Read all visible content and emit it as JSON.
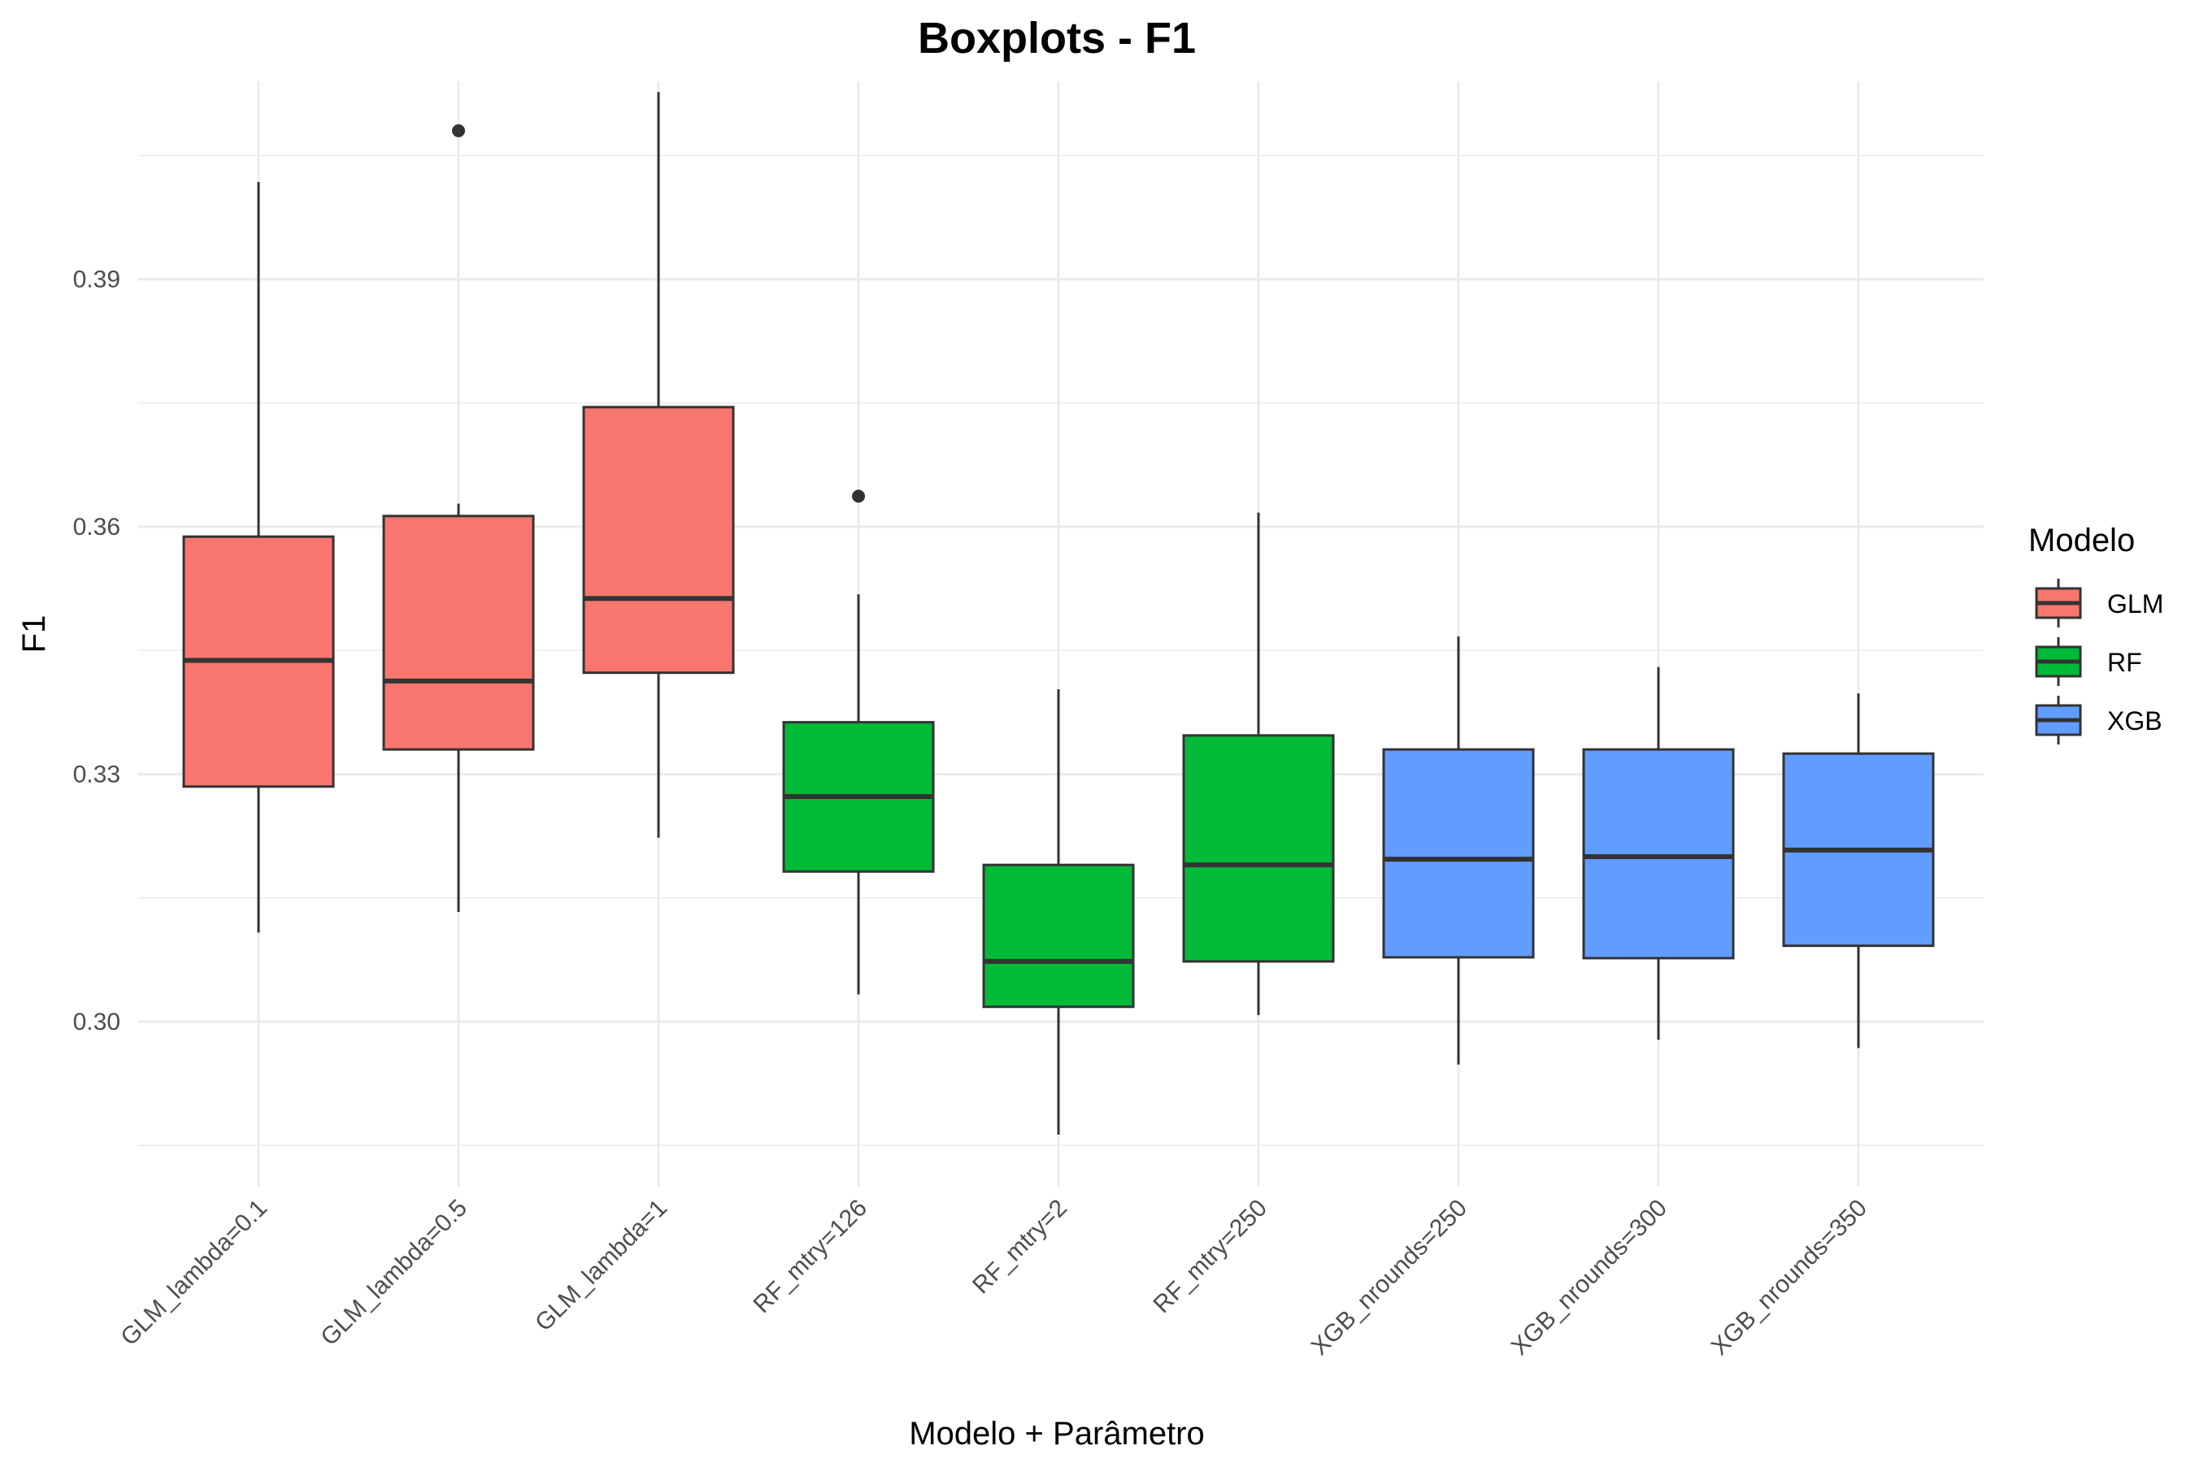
{
  "chart_data": {
    "type": "boxplot",
    "title": "Boxplots - F1",
    "xlabel": "Modelo + Parâmetro",
    "ylabel": "F1",
    "ylim": [
      0.28,
      0.414
    ],
    "yticks": [
      0.3,
      0.33,
      0.36,
      0.39
    ],
    "ytick_labels": [
      "0.30",
      "0.33",
      "0.36",
      "0.39"
    ],
    "grid": true,
    "legend": {
      "title": "Modelo",
      "position": "right",
      "entries": [
        {
          "name": "GLM",
          "color": "#F8766D"
        },
        {
          "name": "RF",
          "color": "#00BA38"
        },
        {
          "name": "XGB",
          "color": "#619CFF"
        }
      ]
    },
    "categories": [
      "GLM_lambda=0.1",
      "GLM_lambda=0.5",
      "GLM_lambda=1",
      "RF_mtry=126",
      "RF_mtry=2",
      "RF_mtry=250",
      "XGB_nrounds=250",
      "XGB_nrounds=300",
      "XGB_nrounds=350"
    ],
    "boxes": [
      {
        "category": "GLM_lambda=0.1",
        "group": "GLM",
        "whisker_low": 0.3108,
        "q1": 0.3285,
        "median": 0.3438,
        "q3": 0.3588,
        "whisker_high": 0.4018,
        "outliers": []
      },
      {
        "category": "GLM_lambda=0.5",
        "group": "GLM",
        "whisker_low": 0.3133,
        "q1": 0.333,
        "median": 0.3413,
        "q3": 0.3613,
        "whisker_high": 0.3628,
        "outliers": [
          0.408
        ]
      },
      {
        "category": "GLM_lambda=1",
        "group": "GLM",
        "whisker_low": 0.3223,
        "q1": 0.3423,
        "median": 0.3513,
        "q3": 0.3745,
        "whisker_high": 0.4127,
        "outliers": []
      },
      {
        "category": "RF_mtry=126",
        "group": "RF",
        "whisker_low": 0.3033,
        "q1": 0.3182,
        "median": 0.3273,
        "q3": 0.3363,
        "whisker_high": 0.3518,
        "outliers": [
          0.3637
        ]
      },
      {
        "category": "RF_mtry=2",
        "group": "RF",
        "whisker_low": 0.2863,
        "q1": 0.3018,
        "median": 0.3073,
        "q3": 0.319,
        "whisker_high": 0.3403,
        "outliers": []
      },
      {
        "category": "RF_mtry=250",
        "group": "RF",
        "whisker_low": 0.3008,
        "q1": 0.3073,
        "median": 0.319,
        "q3": 0.3347,
        "whisker_high": 0.3617,
        "outliers": []
      },
      {
        "category": "XGB_nrounds=250",
        "group": "XGB",
        "whisker_low": 0.2948,
        "q1": 0.3078,
        "median": 0.3197,
        "q3": 0.333,
        "whisker_high": 0.3467,
        "outliers": []
      },
      {
        "category": "XGB_nrounds=300",
        "group": "XGB",
        "whisker_low": 0.2978,
        "q1": 0.3077,
        "median": 0.32,
        "q3": 0.333,
        "whisker_high": 0.343,
        "outliers": []
      },
      {
        "category": "XGB_nrounds=350",
        "group": "XGB",
        "whisker_low": 0.2968,
        "q1": 0.3092,
        "median": 0.3208,
        "q3": 0.3325,
        "whisker_high": 0.3398,
        "outliers": []
      }
    ]
  }
}
